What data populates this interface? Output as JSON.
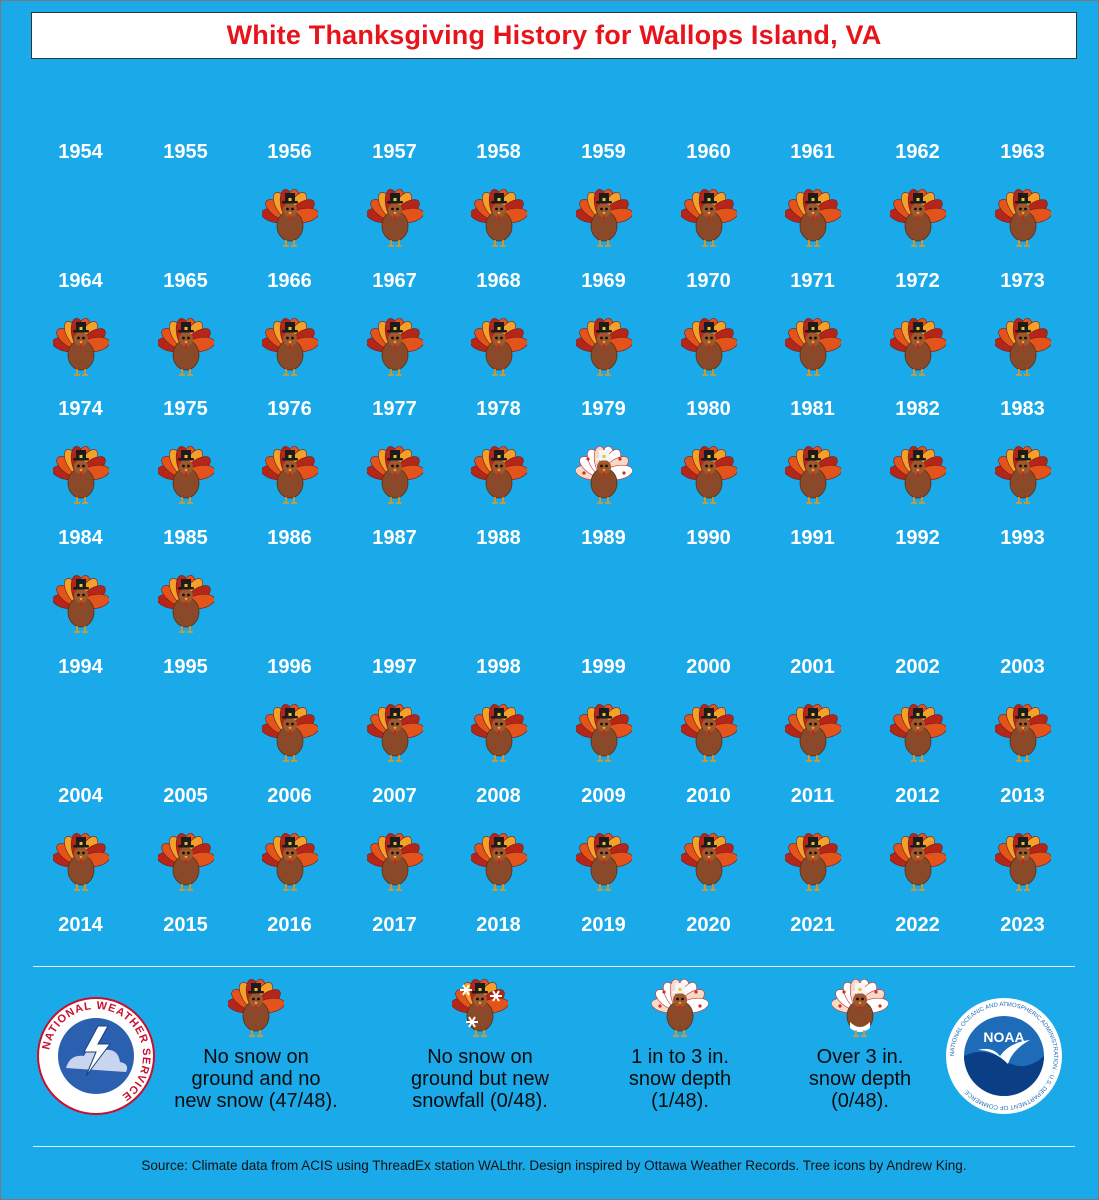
{
  "title": "White Thanksgiving History for Wallops Island, VA",
  "colors": {
    "background": "#1aa9e9",
    "title_text": "#e8141b",
    "year_text": "#ffffff"
  },
  "rows": [
    {
      "years": [
        "1954",
        "1955",
        "1956",
        "1957",
        "1958",
        "1959",
        "1960",
        "1961",
        "1962",
        "1963"
      ],
      "icons": [
        "none",
        "none",
        "no-snow",
        "no-snow",
        "no-snow",
        "no-snow",
        "no-snow",
        "no-snow",
        "no-snow",
        "no-snow"
      ]
    },
    {
      "years": [
        "1964",
        "1965",
        "1966",
        "1967",
        "1968",
        "1969",
        "1970",
        "1971",
        "1972",
        "1973"
      ],
      "icons": [
        "no-snow",
        "no-snow",
        "no-snow",
        "no-snow",
        "no-snow",
        "no-snow",
        "no-snow",
        "no-snow",
        "no-snow",
        "no-snow"
      ]
    },
    {
      "years": [
        "1974",
        "1975",
        "1976",
        "1977",
        "1978",
        "1979",
        "1980",
        "1981",
        "1982",
        "1983"
      ],
      "icons": [
        "no-snow",
        "no-snow",
        "no-snow",
        "no-snow",
        "no-snow",
        "snow-1-3",
        "no-snow",
        "no-snow",
        "no-snow",
        "no-snow"
      ]
    },
    {
      "years": [
        "1984",
        "1985",
        "1986",
        "1987",
        "1988",
        "1989",
        "1990",
        "1991",
        "1992",
        "1993"
      ],
      "icons": [
        "no-snow",
        "no-snow",
        "none",
        "none",
        "none",
        "none",
        "none",
        "none",
        "none",
        "none"
      ]
    },
    {
      "years": [
        "1994",
        "1995",
        "1996",
        "1997",
        "1998",
        "1999",
        "2000",
        "2001",
        "2002",
        "2003"
      ],
      "icons": [
        "none",
        "none",
        "no-snow",
        "no-snow",
        "no-snow",
        "no-snow",
        "no-snow",
        "no-snow",
        "no-snow",
        "no-snow"
      ]
    },
    {
      "years": [
        "2004",
        "2005",
        "2006",
        "2007",
        "2008",
        "2009",
        "2010",
        "2011",
        "2012",
        "2013"
      ],
      "icons": [
        "no-snow",
        "no-snow",
        "no-snow",
        "no-snow",
        "no-snow",
        "no-snow",
        "no-snow",
        "no-snow",
        "no-snow",
        "no-snow"
      ]
    },
    {
      "years": [
        "2014",
        "2015",
        "2016",
        "2017",
        "2018",
        "2019",
        "2020",
        "2021",
        "2022",
        "2023"
      ],
      "icons": [
        "none",
        "none",
        "none",
        "none",
        "none",
        "none",
        "none",
        "none",
        "none",
        "none"
      ]
    }
  ],
  "legend": [
    {
      "icon": "no-snow",
      "text": "No snow on\nground and no\nnew snow (47/48)."
    },
    {
      "icon": "new-snowfall",
      "text": "No snow on\nground but new\nsnowfall (0/48)."
    },
    {
      "icon": "snow-1-3",
      "text": "1 in to 3 in.\nsnow depth\n(1/48)."
    },
    {
      "icon": "snow-over-3",
      "text": "Over 3 in.\nsnow depth\n(0/48)."
    }
  ],
  "logos": {
    "nws": {
      "icon": "nws-logo-icon",
      "ring_text": "NATIONAL WEATHER SERVICE"
    },
    "noaa": {
      "icon": "noaa-logo-icon",
      "center_text": "NOAA",
      "ring_text": "NATIONAL OCEANIC AND ATMOSPHERIC ADMINISTRATION · U.S. DEPARTMENT OF COMMERCE"
    }
  },
  "source": "Source: Climate data from ACIS using ThreadEx station WALthr. Design inspired by Ottawa Weather Records. Tree icons by Andrew King."
}
